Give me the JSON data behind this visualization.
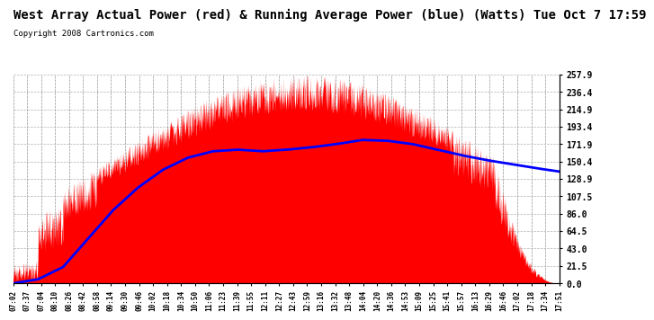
{
  "title": "West Array Actual Power (red) & Running Average Power (blue) (Watts) Tue Oct 7 17:59",
  "copyright": "Copyright 2008 Cartronics.com",
  "ylabel_right": [
    "257.9",
    "236.4",
    "214.9",
    "193.4",
    "171.9",
    "150.4",
    "128.9",
    "107.5",
    "86.0",
    "64.5",
    "43.0",
    "21.5",
    "0.0"
  ],
  "ytick_vals": [
    257.9,
    236.4,
    214.9,
    193.4,
    171.9,
    150.4,
    128.9,
    107.5,
    86.0,
    64.5,
    43.0,
    21.5,
    0.0
  ],
  "ymax": 257.9,
  "ymin": 0.0,
  "xtick_labels": [
    "07:02",
    "07:37",
    "07:04",
    "08:10",
    "08:26",
    "08:42",
    "08:58",
    "09:14",
    "09:30",
    "09:46",
    "10:02",
    "10:18",
    "10:34",
    "10:50",
    "11:06",
    "11:23",
    "11:39",
    "11:55",
    "12:11",
    "12:27",
    "12:43",
    "12:59",
    "13:16",
    "13:32",
    "13:48",
    "14:04",
    "14:20",
    "14:36",
    "14:53",
    "15:09",
    "15:25",
    "15:41",
    "15:57",
    "16:13",
    "16:29",
    "16:46",
    "17:02",
    "17:18",
    "17:34",
    "17:51"
  ],
  "background_color": "#ffffff",
  "grid_color": "#aaaaaa",
  "actual_color": "#ff0000",
  "avg_color": "#0000ff",
  "title_fontsize": 10,
  "copyright_fontsize": 6.5,
  "avg_curve_x": [
    0,
    30,
    60,
    90,
    120,
    150,
    180,
    210,
    240,
    270,
    300,
    330,
    360,
    390,
    420,
    450,
    480,
    510,
    540,
    570,
    600,
    630,
    657
  ],
  "avg_curve_y": [
    0,
    5,
    20,
    55,
    90,
    118,
    140,
    155,
    163,
    165,
    163,
    165,
    168,
    172,
    177,
    176,
    172,
    165,
    158,
    152,
    147,
    142,
    138
  ]
}
